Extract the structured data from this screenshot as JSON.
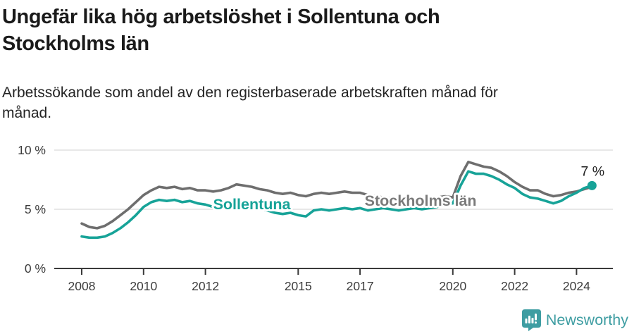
{
  "header": {
    "title_line1": "Ungefär lika hög arbetslöshet i Sollentuna och",
    "title_line2": "Stockholms län",
    "subtitle_line1": "Arbetssökande som andel av den registerbaserade arbetskraften månad för",
    "subtitle_line2": "månad."
  },
  "chart_data": {
    "type": "line",
    "title": "Ungefär lika hög arbetslöshet i Sollentuna och Stockholms län",
    "subtitle": "Arbetssökande som andel av den registerbaserade arbetskraften månad för månad.",
    "xlabel": "",
    "ylabel": "",
    "grid": "horizontal",
    "ylim": [
      0,
      10
    ],
    "xlim": [
      2007.1,
      2025.2
    ],
    "x_ticks": [
      2008,
      2010,
      2012,
      2015,
      2017,
      2020,
      2022,
      2024
    ],
    "y_ticks": [
      {
        "value": 0,
        "label": "0 %"
      },
      {
        "value": 5,
        "label": "5 %"
      },
      {
        "value": 10,
        "label": "10 %"
      }
    ],
    "x": [
      2008,
      2008.25,
      2008.5,
      2008.75,
      2009,
      2009.25,
      2009.5,
      2009.75,
      2010,
      2010.25,
      2010.5,
      2010.75,
      2011,
      2011.25,
      2011.5,
      2011.75,
      2012,
      2012.25,
      2012.5,
      2012.75,
      2013,
      2013.25,
      2013.5,
      2013.75,
      2014,
      2014.25,
      2014.5,
      2014.75,
      2015,
      2015.25,
      2015.5,
      2015.75,
      2016,
      2016.25,
      2016.5,
      2016.75,
      2017,
      2017.25,
      2017.5,
      2017.75,
      2018,
      2018.25,
      2018.5,
      2018.75,
      2019,
      2019.25,
      2019.5,
      2019.75,
      2020,
      2020.25,
      2020.5,
      2020.75,
      2021,
      2021.25,
      2021.5,
      2021.75,
      2022,
      2022.25,
      2022.5,
      2022.75,
      2023,
      2023.25,
      2023.5,
      2023.75,
      2024,
      2024.25,
      2024.5
    ],
    "series": [
      {
        "name": "Stockholms län",
        "color": "#6e6e6e",
        "values": [
          3.8,
          3.5,
          3.4,
          3.6,
          4.0,
          4.5,
          5.0,
          5.6,
          6.2,
          6.6,
          6.9,
          6.8,
          6.9,
          6.7,
          6.8,
          6.6,
          6.6,
          6.5,
          6.6,
          6.8,
          7.1,
          7.0,
          6.9,
          6.7,
          6.6,
          6.4,
          6.3,
          6.4,
          6.2,
          6.1,
          6.3,
          6.4,
          6.3,
          6.4,
          6.5,
          6.4,
          6.4,
          6.2,
          6.1,
          6.0,
          5.9,
          5.8,
          5.9,
          5.8,
          5.9,
          5.9,
          6.0,
          6.1,
          6.0,
          7.8,
          9.0,
          8.8,
          8.6,
          8.5,
          8.2,
          7.8,
          7.3,
          6.9,
          6.6,
          6.6,
          6.3,
          6.1,
          6.2,
          6.4,
          6.5,
          6.7,
          6.9
        ]
      },
      {
        "name": "Sollentuna",
        "color": "#17a398",
        "values": [
          2.7,
          2.6,
          2.6,
          2.7,
          3.0,
          3.4,
          3.9,
          4.5,
          5.2,
          5.6,
          5.8,
          5.7,
          5.8,
          5.6,
          5.7,
          5.5,
          5.4,
          5.2,
          5.3,
          5.5,
          5.6,
          5.5,
          5.3,
          5.1,
          4.9,
          4.7,
          4.6,
          4.7,
          4.5,
          4.4,
          4.9,
          5.0,
          4.9,
          5.0,
          5.1,
          5.0,
          5.1,
          4.9,
          5.0,
          5.1,
          5.0,
          4.9,
          5.0,
          5.1,
          5.0,
          5.1,
          5.2,
          5.4,
          5.5,
          7.0,
          8.2,
          8.0,
          8.0,
          7.8,
          7.5,
          7.1,
          6.8,
          6.3,
          6.0,
          5.9,
          5.7,
          5.5,
          5.7,
          6.1,
          6.4,
          6.8,
          7.0
        ]
      }
    ],
    "series_labels": [
      {
        "text": "Sollentuna",
        "color": "#17a398",
        "at_x": 2012.25,
        "at_value": 5.0
      },
      {
        "text": "Stockholms län",
        "color": "#7a7a7a",
        "at_x": 2017.15,
        "at_value": 5.3
      }
    ],
    "end_annotation": {
      "text": "7 %",
      "series": "Sollentuna",
      "x": 2024.5,
      "value": 7.0
    }
  },
  "footer": {
    "brand": "Newsworthy",
    "brand_color": "#3e9da2"
  }
}
